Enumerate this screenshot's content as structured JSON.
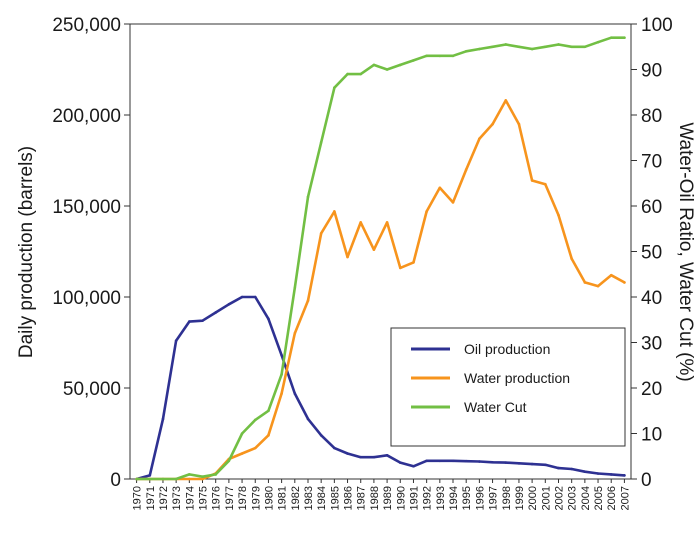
{
  "chart_data": {
    "type": "line",
    "title": "",
    "xlabel": "",
    "ylabel": "Daily production (barrels)",
    "y2label": "Water-Oil Ratio, Water Cut (%)",
    "ylim": [
      0,
      250000
    ],
    "y2lim": [
      0,
      100
    ],
    "yticks": [
      "0",
      "50,000",
      "100,000",
      "150,000",
      "200,000",
      "250,000"
    ],
    "y2ticks": [
      "0",
      "10",
      "20",
      "30",
      "40",
      "50",
      "60",
      "70",
      "80",
      "90",
      "100"
    ],
    "categories": [
      "1970",
      "1971",
      "1972",
      "1973",
      "1974",
      "1975",
      "1976",
      "1977",
      "1978",
      "1979",
      "1980",
      "1981",
      "1982",
      "1983",
      "1984",
      "1985",
      "1986",
      "1987",
      "1988",
      "1989",
      "1990",
      "1991",
      "1992",
      "1993",
      "1994",
      "1995",
      "1996",
      "1997",
      "1998",
      "1999",
      "2000",
      "2001",
      "2002",
      "2003",
      "2004",
      "2005",
      "2006",
      "2007"
    ],
    "legend_position": "lower-right",
    "grid": false,
    "series": [
      {
        "name": "Oil production",
        "axis": "left",
        "color": "#2e3192",
        "values": [
          0,
          2000,
          33000,
          76000,
          86500,
          87000,
          91500,
          96000,
          100000,
          100000,
          88000,
          68000,
          47000,
          33000,
          24000,
          17000,
          14000,
          12000,
          12000,
          13000,
          9000,
          7000,
          10000,
          10000,
          10000,
          9800,
          9600,
          9200,
          9000,
          8600,
          8200,
          7800,
          6000,
          5500,
          4000,
          3000,
          2500,
          2000
        ]
      },
      {
        "name": "Water production",
        "axis": "left",
        "color": "#f7941d",
        "values": [
          0,
          0,
          0,
          0,
          0,
          0,
          3000,
          11000,
          14000,
          17000,
          24000,
          47000,
          80000,
          98000,
          135000,
          147000,
          122000,
          141000,
          126000,
          141000,
          116000,
          119000,
          147000,
          160000,
          152000,
          170000,
          187000,
          195000,
          208000,
          195000,
          164000,
          162000,
          145000,
          121000,
          108000,
          106000,
          112000,
          108000
        ]
      },
      {
        "name": "Water Cut",
        "axis": "right",
        "color": "#72bf44",
        "values": [
          0,
          0,
          0,
          0,
          1,
          0.5,
          1,
          4,
          10,
          13,
          15,
          23,
          42,
          62,
          74,
          86,
          89,
          89,
          91,
          90,
          91,
          92,
          93,
          93,
          93,
          94,
          94.5,
          95,
          95.5,
          95,
          94.5,
          95,
          95.5,
          95,
          95,
          96,
          97,
          97
        ]
      }
    ]
  }
}
